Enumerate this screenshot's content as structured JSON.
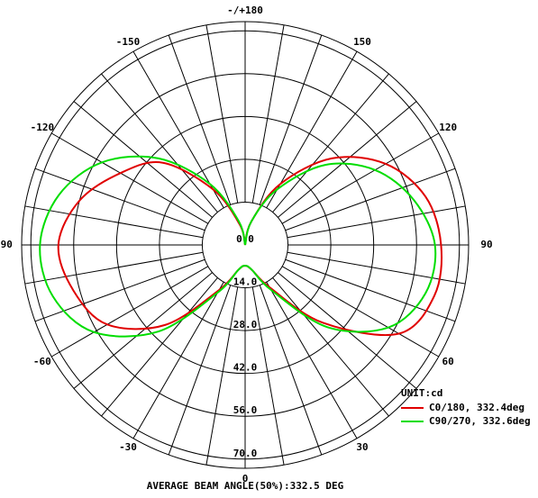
{
  "chart_data": {
    "type": "polar",
    "x": [
      -180,
      -165,
      -150,
      -135,
      -120,
      -105,
      -90,
      -75,
      -60,
      -45,
      -30,
      -15,
      0,
      15,
      30,
      45,
      60,
      75,
      90,
      105,
      120,
      135,
      150,
      165,
      180
    ],
    "series": [
      {
        "name": "C0/180, 332.4deg",
        "color": "#e00000",
        "values": [
          0,
          7,
          21,
          38,
          47,
          56,
          61,
          58,
          52,
          37,
          17,
          8.4,
          6.8,
          8.4,
          16,
          36,
          58,
          64,
          64,
          61,
          53,
          40,
          23,
          8,
          0
        ]
      },
      {
        "name": "C90/270, 332.6deg",
        "color": "#00dd00",
        "values": [
          0,
          8,
          23,
          40,
          54,
          63,
          67,
          65,
          57,
          40,
          18,
          8.4,
          6.8,
          8.4,
          17,
          38,
          54,
          61,
          62,
          57,
          49,
          37,
          21,
          8,
          0
        ]
      }
    ],
    "rlim": [
      0,
      73
    ],
    "rticks": [
      {
        "value": 0,
        "label": "0.0"
      },
      {
        "value": 14,
        "label": "14.0"
      },
      {
        "value": 28,
        "label": "28.0"
      },
      {
        "value": 42,
        "label": "42.0"
      },
      {
        "value": 56,
        "label": "56.0"
      },
      {
        "value": 70,
        "label": "70.0"
      }
    ],
    "angle_ticks": [
      {
        "value": 180,
        "label": "-/+180"
      },
      -150,
      -120,
      -90,
      -60,
      -30,
      0,
      30,
      60,
      90,
      120,
      150
    ],
    "unit": "UNIT:cd",
    "footer": "AVERAGE BEAM ANGLE(50%):332.5 DEG"
  }
}
